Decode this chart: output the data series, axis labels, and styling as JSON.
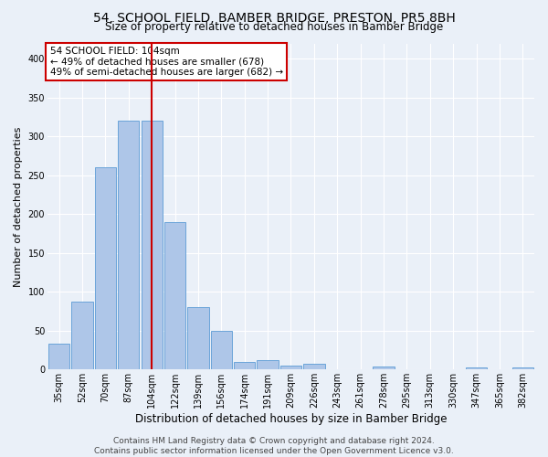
{
  "title": "54, SCHOOL FIELD, BAMBER BRIDGE, PRESTON, PR5 8BH",
  "subtitle": "Size of property relative to detached houses in Bamber Bridge",
  "xlabel": "Distribution of detached houses by size in Bamber Bridge",
  "ylabel": "Number of detached properties",
  "categories": [
    "35sqm",
    "52sqm",
    "70sqm",
    "87sqm",
    "104sqm",
    "122sqm",
    "139sqm",
    "156sqm",
    "174sqm",
    "191sqm",
    "209sqm",
    "226sqm",
    "243sqm",
    "261sqm",
    "278sqm",
    "295sqm",
    "313sqm",
    "330sqm",
    "347sqm",
    "365sqm",
    "382sqm"
  ],
  "values": [
    33,
    87,
    260,
    320,
    320,
    190,
    80,
    50,
    10,
    12,
    5,
    7,
    0,
    0,
    4,
    0,
    0,
    0,
    3,
    0,
    3
  ],
  "bar_color": "#aec6e8",
  "bar_edge_color": "#5b9bd5",
  "highlight_index": 4,
  "highlight_line_color": "#cc0000",
  "annotation_line1": "54 SCHOOL FIELD: 104sqm",
  "annotation_line2": "← 49% of detached houses are smaller (678)",
  "annotation_line3": "49% of semi-detached houses are larger (682) →",
  "annotation_box_color": "#ffffff",
  "annotation_box_edge_color": "#cc0000",
  "ylim": [
    0,
    420
  ],
  "yticks": [
    0,
    50,
    100,
    150,
    200,
    250,
    300,
    350,
    400
  ],
  "footer_line1": "Contains HM Land Registry data © Crown copyright and database right 2024.",
  "footer_line2": "Contains public sector information licensed under the Open Government Licence v3.0.",
  "bg_color": "#eaf0f8",
  "grid_color": "#ffffff",
  "title_fontsize": 10,
  "subtitle_fontsize": 8.5,
  "xlabel_fontsize": 8.5,
  "ylabel_fontsize": 8,
  "tick_fontsize": 7,
  "annotation_fontsize": 7.5,
  "footer_fontsize": 6.5
}
